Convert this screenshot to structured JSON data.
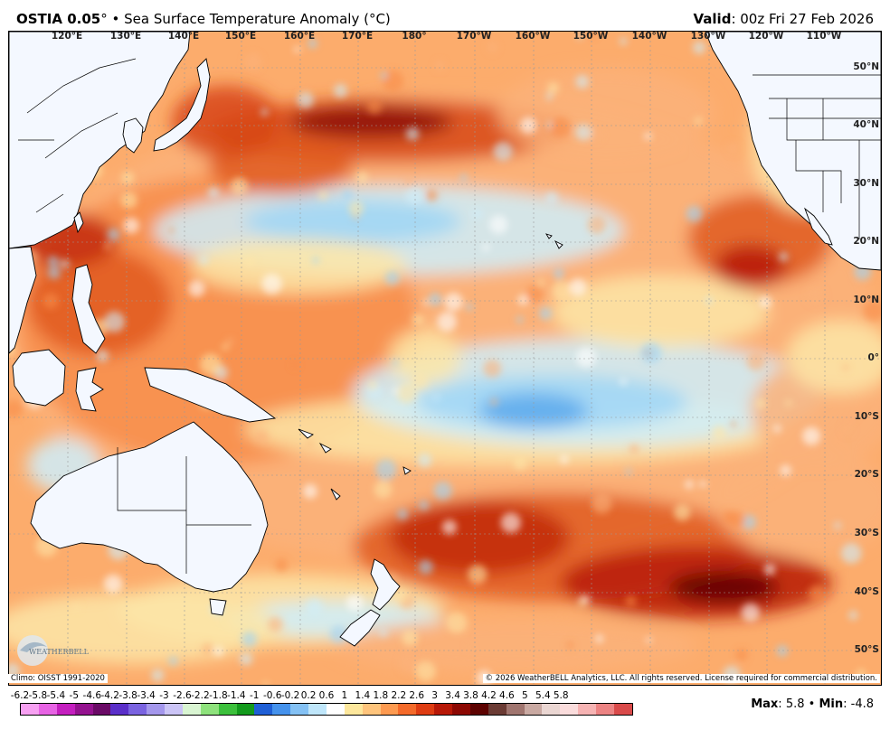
{
  "header": {
    "product": "OSTIA 0.05",
    "degree": "°",
    "bullet": "•",
    "variable": "Sea Surface Temperature Anomaly (°C)",
    "valid_label": "Valid",
    "valid_time": "00z Fri 27 Feb 2026"
  },
  "map": {
    "region": "Pacific Ocean",
    "lon_labels": [
      "120°E",
      "130°E",
      "140°E",
      "150°E",
      "160°E",
      "170°E",
      "180°",
      "170°W",
      "160°W",
      "150°W",
      "140°W",
      "130°W",
      "120°W",
      "110°W"
    ],
    "lat_labels": [
      "50°N",
      "40°N",
      "30°N",
      "20°N",
      "10°N",
      "0°",
      "10°S",
      "20°S",
      "30°S",
      "40°S",
      "50°S"
    ],
    "land_color": "#f4f8ff",
    "gridline_color": "#9a9a9a"
  },
  "footer": {
    "climo": "Climo: OISST 1991-2020",
    "copyright": "© 2026 WeatherBELL Analytics, LLC. All rights reserved. License required for commercial distribution.",
    "logo_text": "WEATHERBELL",
    "max_label": "Max",
    "max_value": "5.8",
    "separator": "•",
    "min_label": "Min",
    "min_value": "-4.8"
  },
  "colorbar": {
    "ticks": [
      "-6.2",
      "-5.8",
      "-5.4",
      "-5",
      "-4.6",
      "-4.2",
      "-3.8",
      "-3.4",
      "-3",
      "-2.6",
      "-2.2",
      "-1.8",
      "-1.4",
      "-1",
      "-0.6",
      "-0.2",
      "0.2",
      "0.6",
      "1",
      "1.4",
      "1.8",
      "2.2",
      "2.6",
      "3",
      "3.4",
      "3.8",
      "4.2",
      "4.6",
      "5",
      "5.4",
      "5.8"
    ],
    "colors": [
      "#f7a0f2",
      "#e763e4",
      "#c41fbf",
      "#94128f",
      "#6a0a66",
      "#5a2fc9",
      "#7a63e0",
      "#a497ec",
      "#cbc4f6",
      "#d9f5d2",
      "#8ee27c",
      "#3cc03c",
      "#139a1c",
      "#1f5fd6",
      "#4592ec",
      "#84c1f4",
      "#bfe6fa",
      "#ffffff",
      "#fde79c",
      "#fec47c",
      "#fd9a50",
      "#f46a2a",
      "#de3c12",
      "#b71807",
      "#8c0803",
      "#5d0301",
      "#6b3b34",
      "#a0756f",
      "#c9a9a2",
      "#ead6d2",
      "#fadcdc",
      "#f6b3b3",
      "#ec8383",
      "#d94a4a"
    ]
  },
  "chart_data": {
    "type": "heatmap",
    "title": "OSTIA 0.05° • Sea Surface Temperature Anomaly (°C)",
    "valid": "00z Fri 27 Feb 2026",
    "xlabel": "",
    "ylabel": "",
    "units": "°C",
    "x_range": [
      "120°E",
      "110°W"
    ],
    "y_range": [
      "50°S",
      "50°N"
    ],
    "color_scale_ticks": [
      -6.2,
      -5.8,
      -5.4,
      -5,
      -4.6,
      -4.2,
      -3.8,
      -3.4,
      -3,
      -2.6,
      -2.2,
      -1.8,
      -1.4,
      -1,
      -0.6,
      -0.2,
      0.2,
      0.6,
      1,
      1.4,
      1.8,
      2.2,
      2.6,
      3,
      3.4,
      3.8,
      4.2,
      4.6,
      5,
      5.4,
      5.8
    ],
    "max": 5.8,
    "min": -4.8,
    "climatology": "OISST 1991-2020"
  }
}
